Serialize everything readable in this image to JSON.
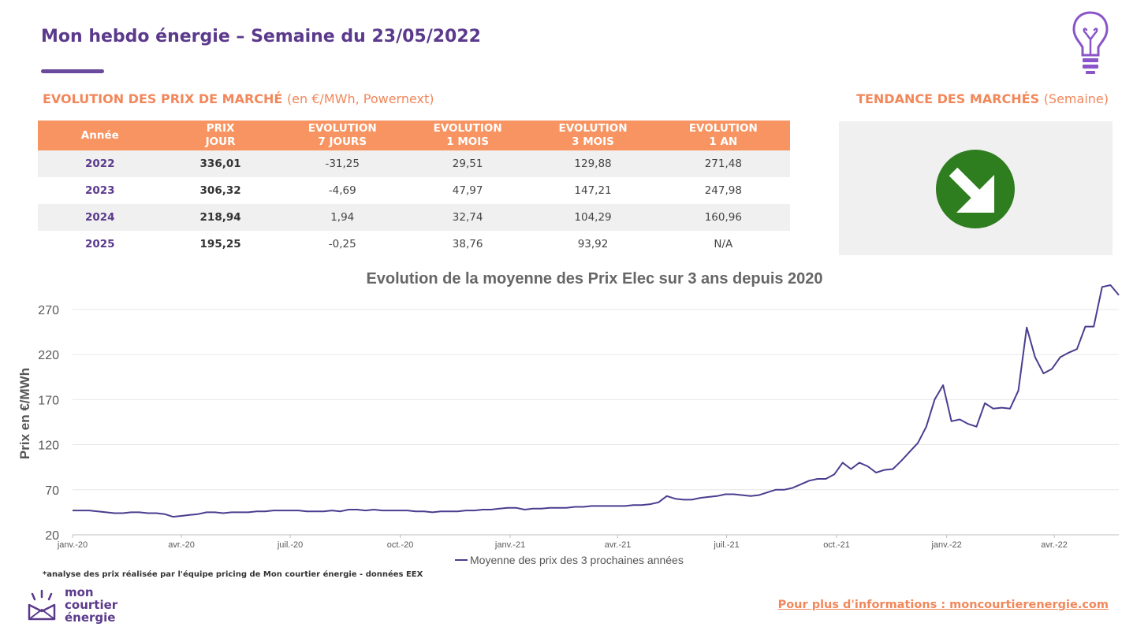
{
  "header": {
    "title": "Mon hebdo énergie – Semaine du 23/05/2022"
  },
  "section_prix": {
    "title": "EVOLUTION DES PRIX DE MARCHÉ",
    "subtitle": "(en €/MWh, Powernext)"
  },
  "section_tendance": {
    "title": "TENDANCE DES MARCHÉS",
    "subtitle": "(Semaine)",
    "direction": "down-right-arrow",
    "color": "#2e7d1f"
  },
  "table": {
    "headers": [
      [
        "Année"
      ],
      [
        "PRIX",
        "JOUR"
      ],
      [
        "EVOLUTION",
        "7 JOURS"
      ],
      [
        "EVOLUTION",
        "1 MOIS"
      ],
      [
        "EVOLUTION",
        "3 MOIS"
      ],
      [
        "EVOLUTION",
        "1 AN"
      ]
    ],
    "rows": [
      [
        "2022",
        "336,01",
        "-31,25",
        "29,51",
        "129,88",
        "271,48"
      ],
      [
        "2023",
        "306,32",
        "-4,69",
        "47,97",
        "147,21",
        "247,98"
      ],
      [
        "2024",
        "218,94",
        "1,94",
        "32,74",
        "104,29",
        "160,96"
      ],
      [
        "2025",
        "195,25",
        "-0,25",
        "38,76",
        "93,92",
        "N/A"
      ]
    ]
  },
  "chart_data": {
    "type": "line",
    "title": "Evolution de la moyenne des Prix Elec sur 3 ans depuis 2020",
    "ylabel": "Prix en €/MWh",
    "xlabel": "",
    "ylim": [
      20,
      290
    ],
    "yticks": [
      20,
      70,
      120,
      170,
      220,
      270
    ],
    "grid": true,
    "legend": "bottom-center",
    "x_ticks": [
      {
        "date": "2020-01-01",
        "label": "janv.-20"
      },
      {
        "date": "2020-04-01",
        "label": "avr.-20"
      },
      {
        "date": "2020-07-01",
        "label": "juil.-20"
      },
      {
        "date": "2020-10-01",
        "label": "oct.-20"
      },
      {
        "date": "2021-01-01",
        "label": "janv.-21"
      },
      {
        "date": "2021-04-01",
        "label": "avr.-21"
      },
      {
        "date": "2021-07-01",
        "label": "juil.-21"
      },
      {
        "date": "2021-10-01",
        "label": "oct.-21"
      },
      {
        "date": "2022-01-01",
        "label": "janv.-22"
      },
      {
        "date": "2022-04-01",
        "label": "avr.-22"
      }
    ],
    "series": [
      {
        "name": "Moyenne des prix des 3 prochaines années",
        "color": "#4a3d8f",
        "points": [
          [
            "2020-01-01",
            47
          ],
          [
            "2020-01-08",
            47
          ],
          [
            "2020-01-15",
            47
          ],
          [
            "2020-01-22",
            46
          ],
          [
            "2020-01-29",
            45
          ],
          [
            "2020-02-05",
            44
          ],
          [
            "2020-02-12",
            44
          ],
          [
            "2020-02-19",
            45
          ],
          [
            "2020-02-26",
            45
          ],
          [
            "2020-03-04",
            44
          ],
          [
            "2020-03-11",
            44
          ],
          [
            "2020-03-18",
            43
          ],
          [
            "2020-03-25",
            40
          ],
          [
            "2020-04-01",
            41
          ],
          [
            "2020-04-08",
            42
          ],
          [
            "2020-04-15",
            43
          ],
          [
            "2020-04-22",
            45
          ],
          [
            "2020-04-29",
            45
          ],
          [
            "2020-05-06",
            44
          ],
          [
            "2020-05-13",
            45
          ],
          [
            "2020-05-20",
            45
          ],
          [
            "2020-05-27",
            45
          ],
          [
            "2020-06-03",
            46
          ],
          [
            "2020-06-10",
            46
          ],
          [
            "2020-06-17",
            47
          ],
          [
            "2020-06-24",
            47
          ],
          [
            "2020-07-01",
            47
          ],
          [
            "2020-07-08",
            47
          ],
          [
            "2020-07-15",
            46
          ],
          [
            "2020-07-22",
            46
          ],
          [
            "2020-07-29",
            46
          ],
          [
            "2020-08-05",
            47
          ],
          [
            "2020-08-12",
            46
          ],
          [
            "2020-08-19",
            48
          ],
          [
            "2020-08-26",
            48
          ],
          [
            "2020-09-02",
            47
          ],
          [
            "2020-09-09",
            48
          ],
          [
            "2020-09-16",
            47
          ],
          [
            "2020-09-23",
            47
          ],
          [
            "2020-09-30",
            47
          ],
          [
            "2020-10-07",
            47
          ],
          [
            "2020-10-14",
            46
          ],
          [
            "2020-10-21",
            46
          ],
          [
            "2020-10-28",
            45
          ],
          [
            "2020-11-04",
            46
          ],
          [
            "2020-11-11",
            46
          ],
          [
            "2020-11-18",
            46
          ],
          [
            "2020-11-25",
            47
          ],
          [
            "2020-12-02",
            47
          ],
          [
            "2020-12-09",
            48
          ],
          [
            "2020-12-16",
            48
          ],
          [
            "2020-12-23",
            49
          ],
          [
            "2020-12-30",
            50
          ],
          [
            "2021-01-06",
            50
          ],
          [
            "2021-01-13",
            48
          ],
          [
            "2021-01-20",
            49
          ],
          [
            "2021-01-27",
            49
          ],
          [
            "2021-02-03",
            50
          ],
          [
            "2021-02-10",
            50
          ],
          [
            "2021-02-17",
            50
          ],
          [
            "2021-02-24",
            51
          ],
          [
            "2021-03-03",
            51
          ],
          [
            "2021-03-10",
            52
          ],
          [
            "2021-03-17",
            52
          ],
          [
            "2021-03-24",
            52
          ],
          [
            "2021-03-31",
            52
          ],
          [
            "2021-04-07",
            52
          ],
          [
            "2021-04-14",
            53
          ],
          [
            "2021-04-21",
            53
          ],
          [
            "2021-04-28",
            54
          ],
          [
            "2021-05-05",
            56
          ],
          [
            "2021-05-12",
            63
          ],
          [
            "2021-05-19",
            60
          ],
          [
            "2021-05-26",
            59
          ],
          [
            "2021-06-02",
            59
          ],
          [
            "2021-06-09",
            61
          ],
          [
            "2021-06-16",
            62
          ],
          [
            "2021-06-23",
            63
          ],
          [
            "2021-06-30",
            65
          ],
          [
            "2021-07-07",
            65
          ],
          [
            "2021-07-14",
            64
          ],
          [
            "2021-07-21",
            63
          ],
          [
            "2021-07-28",
            64
          ],
          [
            "2021-08-04",
            67
          ],
          [
            "2021-08-11",
            70
          ],
          [
            "2021-08-18",
            70
          ],
          [
            "2021-08-25",
            72
          ],
          [
            "2021-09-01",
            76
          ],
          [
            "2021-09-08",
            80
          ],
          [
            "2021-09-15",
            82
          ],
          [
            "2021-09-22",
            82
          ],
          [
            "2021-09-29",
            87
          ],
          [
            "2021-10-06",
            100
          ],
          [
            "2021-10-13",
            93
          ],
          [
            "2021-10-20",
            100
          ],
          [
            "2021-10-27",
            96
          ],
          [
            "2021-11-03",
            89
          ],
          [
            "2021-11-10",
            92
          ],
          [
            "2021-11-17",
            93
          ],
          [
            "2021-11-24",
            102
          ],
          [
            "2021-12-01",
            112
          ],
          [
            "2021-12-08",
            122
          ],
          [
            "2021-12-15",
            140
          ],
          [
            "2021-12-22",
            170
          ],
          [
            "2021-12-29",
            186
          ],
          [
            "2022-01-05",
            146
          ],
          [
            "2022-01-12",
            148
          ],
          [
            "2022-01-19",
            143
          ],
          [
            "2022-01-26",
            140
          ],
          [
            "2022-02-02",
            166
          ],
          [
            "2022-02-09",
            160
          ],
          [
            "2022-02-16",
            161
          ],
          [
            "2022-02-23",
            160
          ],
          [
            "2022-03-02",
            180
          ],
          [
            "2022-03-09",
            250
          ],
          [
            "2022-03-16",
            217
          ],
          [
            "2022-03-23",
            199
          ],
          [
            "2022-03-30",
            204
          ],
          [
            "2022-04-06",
            217
          ],
          [
            "2022-04-13",
            222
          ],
          [
            "2022-04-20",
            226
          ],
          [
            "2022-04-27",
            251
          ],
          [
            "2022-05-04",
            251
          ],
          [
            "2022-05-11",
            295
          ],
          [
            "2022-05-18",
            297
          ],
          [
            "2022-05-25",
            286
          ]
        ]
      }
    ]
  },
  "footnote": "*analyse des prix réalisée par l'équipe pricing de Mon courtier énergie -  données EEX",
  "logo": {
    "line1": "mon",
    "line2": "courtier",
    "line3": "énergie"
  },
  "footer_link": "Pour plus d'informations : moncourtierenergie.com"
}
